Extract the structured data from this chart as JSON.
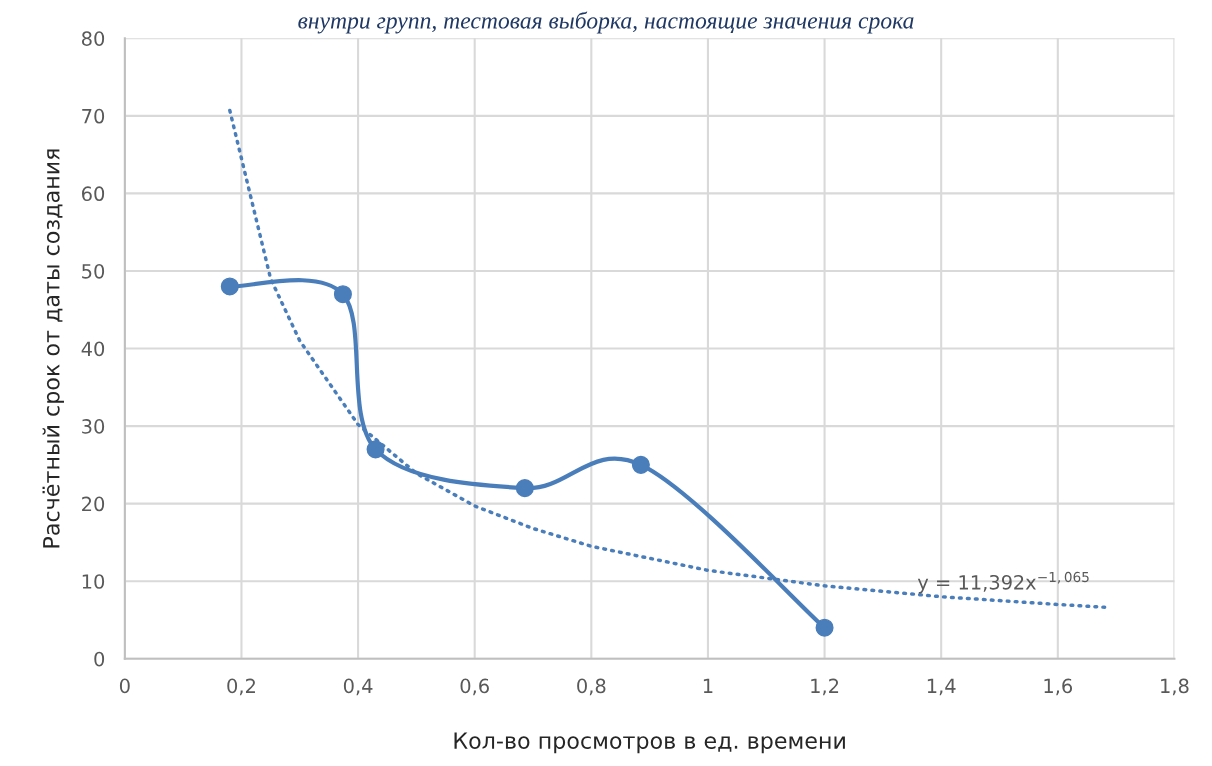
{
  "chart_data": {
    "type": "line",
    "title": "внутри групп, тестовая выборка, настоящие значения срока",
    "xlabel": "Кол-во просмотров в ед. времени",
    "ylabel": "Расчётный срок от даты создания",
    "xlim": [
      0,
      1.8
    ],
    "xticks": [
      0,
      {
        "value": 0.2,
        "label": "0,2"
      },
      {
        "value": 0.4,
        "label": "0,4"
      },
      {
        "value": 0.6,
        "label": "0,6"
      },
      {
        "value": 0.8,
        "label": "0,8"
      },
      1,
      {
        "value": 1.2,
        "label": "1,2"
      },
      {
        "value": 1.4,
        "label": "1,4"
      },
      {
        "value": 1.6,
        "label": "1,6"
      },
      {
        "value": 1.8,
        "label": "1,8"
      }
    ],
    "ylim": [
      0,
      80
    ],
    "yticks": [
      0,
      10,
      20,
      30,
      40,
      50,
      60,
      70,
      80
    ],
    "grid": true,
    "legend": false,
    "series": [
      {
        "color": "#4a7ebb",
        "marker": "circle",
        "line_style": "solid",
        "x": [
          0.18,
          0.374,
          0.43,
          0.686,
          0.885,
          1.2
        ],
        "values": [
          48,
          47,
          27,
          22,
          25,
          4
        ]
      },
      {
        "color": "#4a7ebb",
        "marker": "none",
        "line_style": "dotted",
        "x": [
          0.18,
          0.25,
          0.3,
          0.4,
          0.5,
          0.6,
          0.7,
          0.8,
          1.0,
          1.2,
          1.4,
          1.6,
          1.69
        ],
        "values": [
          70.7,
          49.0,
          41.0,
          30.2,
          23.9,
          19.7,
          16.8,
          14.5,
          11.4,
          9.4,
          8.0,
          7.0,
          6.6
        ]
      }
    ],
    "annotations": [
      "y = 11,392x$^{−1,065}$"
    ]
  }
}
